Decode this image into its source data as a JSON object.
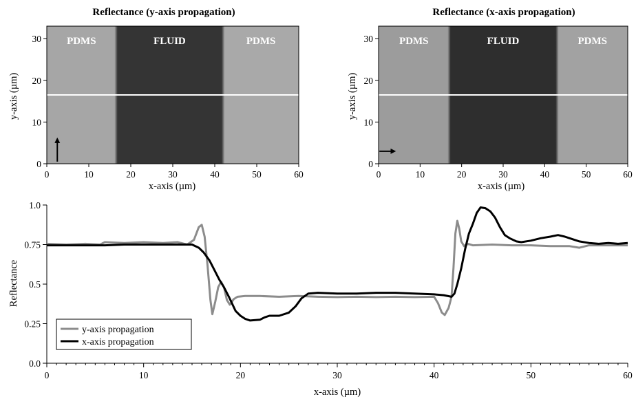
{
  "chart_data": [
    {
      "type": "heatmap",
      "title": "Reflectance (y-axis propagation)",
      "xlabel": "x-axis (µm)",
      "ylabel": "y-axis (µm)",
      "xlim": [
        0,
        60
      ],
      "ylim": [
        0,
        33
      ],
      "xticks": [
        "0",
        "10",
        "20",
        "30",
        "40",
        "50",
        "60"
      ],
      "yticks": [
        "0",
        "10",
        "20",
        "30"
      ],
      "regions": [
        {
          "label": "PDMS",
          "x": [
            0,
            16.5
          ],
          "shade": "#a6a6a6"
        },
        {
          "label": "FLUID",
          "x": [
            16.5,
            42
          ],
          "shade": "#343434"
        },
        {
          "label": "PDMS",
          "x": [
            42,
            60
          ],
          "shade": "#a9a9a9"
        }
      ],
      "line_y": 16.5,
      "arrow": {
        "direction": "up",
        "from": [
          2.5,
          0.5
        ],
        "to": [
          2.5,
          5.8
        ]
      }
    },
    {
      "type": "heatmap",
      "title": "Reflectance (x-axis propagation)",
      "xlabel": "x-axis (µm)",
      "ylabel": "y-axis (µm)",
      "xlim": [
        0,
        60
      ],
      "ylim": [
        0,
        33
      ],
      "xticks": [
        "0",
        "10",
        "20",
        "30",
        "40",
        "50",
        "60"
      ],
      "yticks": [
        "0",
        "10",
        "20",
        "30"
      ],
      "regions": [
        {
          "label": "PDMS",
          "x": [
            0,
            17
          ],
          "shade": "#9c9c9c"
        },
        {
          "label": "FLUID",
          "x": [
            17,
            43
          ],
          "shade": "#2e2e2e"
        },
        {
          "label": "PDMS",
          "x": [
            43,
            60
          ],
          "shade": "#a2a2a2"
        }
      ],
      "line_y": 16.5,
      "arrow": {
        "direction": "right",
        "from": [
          0.2,
          3
        ],
        "to": [
          3.7,
          3
        ]
      }
    },
    {
      "type": "line",
      "xlabel": "x-axis (µm)",
      "ylabel": "Reflectance",
      "xlim": [
        0,
        60
      ],
      "ylim": [
        0,
        1
      ],
      "xticks": [
        "0",
        "10",
        "20",
        "30",
        "40",
        "50",
        "60"
      ],
      "yticks": [
        "0.0",
        "0.25",
        "0.5",
        "0.75",
        "1.0"
      ],
      "legend_position": "bottom-left",
      "series": [
        {
          "name": "y-axis propagation",
          "color": "#8c8c8c",
          "points": [
            [
              0,
              0.755
            ],
            [
              2,
              0.75
            ],
            [
              4,
              0.755
            ],
            [
              5.5,
              0.75
            ],
            [
              6,
              0.765
            ],
            [
              8,
              0.76
            ],
            [
              10,
              0.765
            ],
            [
              12,
              0.76
            ],
            [
              13.5,
              0.765
            ],
            [
              14.5,
              0.75
            ],
            [
              15.2,
              0.78
            ],
            [
              15.7,
              0.86
            ],
            [
              16,
              0.875
            ],
            [
              16.3,
              0.8
            ],
            [
              16.6,
              0.62
            ],
            [
              16.9,
              0.4
            ],
            [
              17.1,
              0.31
            ],
            [
              17.4,
              0.39
            ],
            [
              17.7,
              0.48
            ],
            [
              18,
              0.515
            ],
            [
              18.3,
              0.48
            ],
            [
              18.6,
              0.4
            ],
            [
              18.9,
              0.37
            ],
            [
              19.3,
              0.405
            ],
            [
              19.7,
              0.42
            ],
            [
              20.5,
              0.425
            ],
            [
              22,
              0.425
            ],
            [
              24,
              0.42
            ],
            [
              26,
              0.425
            ],
            [
              28,
              0.42
            ],
            [
              30,
              0.418
            ],
            [
              32,
              0.42
            ],
            [
              34,
              0.418
            ],
            [
              36,
              0.42
            ],
            [
              38,
              0.418
            ],
            [
              40,
              0.42
            ],
            [
              40.4,
              0.38
            ],
            [
              40.8,
              0.32
            ],
            [
              41.1,
              0.305
            ],
            [
              41.5,
              0.35
            ],
            [
              41.8,
              0.42
            ],
            [
              42,
              0.6
            ],
            [
              42.2,
              0.82
            ],
            [
              42.4,
              0.9
            ],
            [
              42.6,
              0.85
            ],
            [
              42.8,
              0.77
            ],
            [
              43.1,
              0.74
            ],
            [
              43.5,
              0.755
            ],
            [
              44,
              0.745
            ],
            [
              46,
              0.75
            ],
            [
              48,
              0.745
            ],
            [
              50,
              0.745
            ],
            [
              52,
              0.74
            ],
            [
              54,
              0.74
            ],
            [
              55,
              0.73
            ],
            [
              56,
              0.745
            ],
            [
              58,
              0.745
            ],
            [
              60,
              0.745
            ]
          ]
        },
        {
          "name": "x-axis propagation",
          "color": "#000000",
          "points": [
            [
              0,
              0.745
            ],
            [
              2,
              0.745
            ],
            [
              4,
              0.745
            ],
            [
              6,
              0.745
            ],
            [
              8,
              0.75
            ],
            [
              10,
              0.75
            ],
            [
              12,
              0.75
            ],
            [
              14,
              0.75
            ],
            [
              15,
              0.75
            ],
            [
              15.7,
              0.73
            ],
            [
              16.2,
              0.7
            ],
            [
              16.8,
              0.65
            ],
            [
              17.3,
              0.59
            ],
            [
              17.8,
              0.53
            ],
            [
              18.3,
              0.48
            ],
            [
              18.8,
              0.42
            ],
            [
              19.5,
              0.33
            ],
            [
              20,
              0.3
            ],
            [
              20.5,
              0.28
            ],
            [
              21,
              0.27
            ],
            [
              22,
              0.275
            ],
            [
              22.5,
              0.29
            ],
            [
              23,
              0.3
            ],
            [
              24,
              0.3
            ],
            [
              25,
              0.32
            ],
            [
              25.7,
              0.36
            ],
            [
              26.3,
              0.41
            ],
            [
              27,
              0.44
            ],
            [
              28,
              0.445
            ],
            [
              30,
              0.44
            ],
            [
              32,
              0.44
            ],
            [
              34,
              0.445
            ],
            [
              36,
              0.445
            ],
            [
              38,
              0.44
            ],
            [
              40,
              0.435
            ],
            [
              41,
              0.43
            ],
            [
              41.8,
              0.42
            ],
            [
              42.1,
              0.44
            ],
            [
              42.4,
              0.5
            ],
            [
              42.8,
              0.6
            ],
            [
              43.2,
              0.72
            ],
            [
              43.6,
              0.82
            ],
            [
              44,
              0.88
            ],
            [
              44.4,
              0.95
            ],
            [
              44.8,
              0.985
            ],
            [
              45.3,
              0.98
            ],
            [
              45.8,
              0.96
            ],
            [
              46.3,
              0.92
            ],
            [
              46.8,
              0.86
            ],
            [
              47.3,
              0.81
            ],
            [
              47.8,
              0.79
            ],
            [
              48.5,
              0.77
            ],
            [
              49,
              0.765
            ],
            [
              50,
              0.775
            ],
            [
              51,
              0.79
            ],
            [
              52,
              0.8
            ],
            [
              52.8,
              0.81
            ],
            [
              53.5,
              0.8
            ],
            [
              54,
              0.79
            ],
            [
              55,
              0.77
            ],
            [
              56,
              0.76
            ],
            [
              57,
              0.755
            ],
            [
              58,
              0.76
            ],
            [
              59,
              0.755
            ],
            [
              60,
              0.76
            ]
          ]
        }
      ]
    }
  ]
}
